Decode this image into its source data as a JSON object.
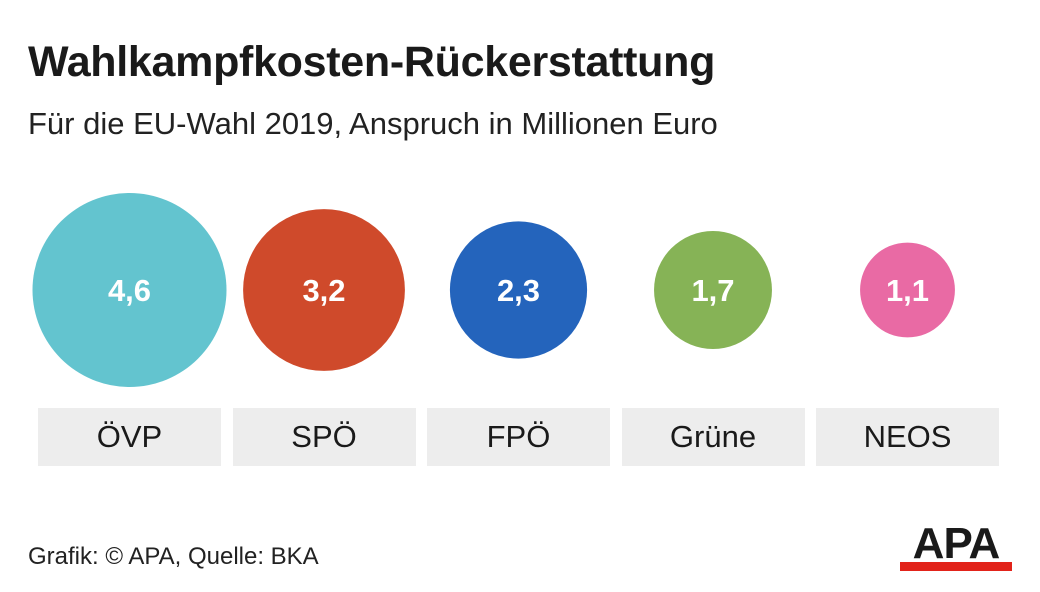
{
  "title": "Wahlkampfkosten-Rückerstattung",
  "subtitle": "Für die EU-Wahl 2019, Anspruch in Millionen Euro",
  "chart_data": {
    "type": "bubble",
    "categories": [
      "ÖVP",
      "SPÖ",
      "FPÖ",
      "Grüne",
      "NEOS"
    ],
    "values": [
      4.6,
      3.2,
      2.3,
      1.7,
      1.1
    ],
    "value_labels": [
      "4,6",
      "3,2",
      "2,3",
      "1,7",
      "1,1"
    ],
    "colors": [
      "#63c4cf",
      "#cf4a2b",
      "#2464bc",
      "#86b356",
      "#e96aa4"
    ],
    "label_color": "#ffffff"
  },
  "source": "Grafik: © APA, Quelle: BKA",
  "logo": {
    "text": "APA",
    "bar_color": "#e2231a"
  }
}
